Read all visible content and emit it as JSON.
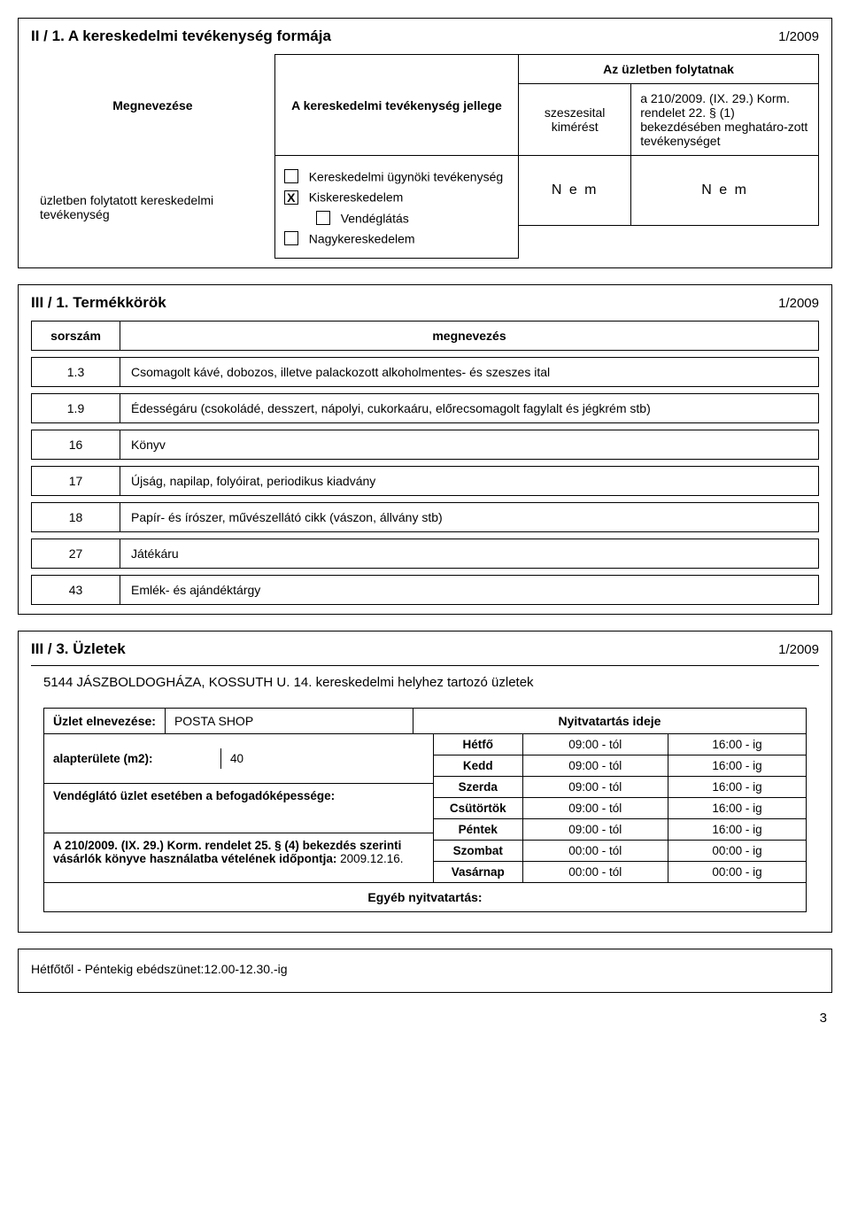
{
  "section1": {
    "title": "II / 1.   A kereskedelmi tevékenység formája",
    "date": "1/2009",
    "megnevezese": "Megnevezése",
    "jellege": "A kereskedelmi tevékenység jellege",
    "uzletben_folytatott": "üzletben folytatott kereskedelmi tevékenység",
    "opt_ugynoki": "Kereskedelmi     ügynöki tevékenység",
    "opt_kisker_checked": true,
    "opt_kisker": "Kiskereskedelem",
    "opt_vendeglatas": "Vendéglátás",
    "opt_nagyker": "Nagykereskedelem",
    "az_uzletben": "Az üzletben folytatnak",
    "szeszesital": "szeszesital kimérést",
    "rendelet": "a 210/2009. (IX. 29.) Korm. rendelet 22. § (1) bekezdésében meghatáro-zott tevékenységet",
    "nem1": "N e m",
    "nem2": "N e m"
  },
  "section2": {
    "title": "III / 1. Termékkörök",
    "date": "1/2009",
    "col_sorszam": "sorszám",
    "col_megnevezes": "megnevezés",
    "rows": [
      {
        "n": "1.3",
        "t": "Csomagolt kávé, dobozos, illetve palackozott alkoholmentes- és szeszes ital"
      },
      {
        "n": "1.9",
        "t": "Édességáru (csokoládé, desszert, nápolyi, cukorkaáru, előrecsomagolt fagylalt és jégkrém stb)"
      },
      {
        "n": "16",
        "t": "Könyv"
      },
      {
        "n": "17",
        "t": "Újság, napilap, folyóirat, periodikus kiadvány"
      },
      {
        "n": "18",
        "t": "Papír- és írószer, művészellátó cikk (vászon, állvány stb)"
      },
      {
        "n": "27",
        "t": "Játékáru"
      },
      {
        "n": "43",
        "t": "Emlék- és ajándéktárgy"
      }
    ]
  },
  "section3": {
    "title": "III / 3. Üzletek",
    "date": "1/2009",
    "address": "5144 JÁSZBOLDOGHÁZA, KOSSUTH U. 14. kereskedelmi helyhez tartozó üzletek",
    "uzlet_label": "Üzlet elnevezése:",
    "uzlet_name": "POSTA SHOP",
    "nyitva_label": "Nyitvatartás ideje",
    "area_label": "alapterülete (m2):",
    "area_val": "40",
    "vendeg_label": "Vendéglátó üzlet esetében a befogadóképessége:",
    "rendelet_text": "A 210/2009. (IX. 29.) Korm. rendelet 25. § (4) bekezdés szerinti vásárlók könyve használatba vételének időpontja:",
    "rendelet_date": "2009.12.16.",
    "days": [
      {
        "d": "Hétfő",
        "f": "09:00 - tól",
        "t": "16:00 - ig"
      },
      {
        "d": "Kedd",
        "f": "09:00 - tól",
        "t": "16:00 - ig"
      },
      {
        "d": "Szerda",
        "f": "09:00 - tól",
        "t": "16:00 - ig"
      },
      {
        "d": "Csütörtök",
        "f": "09:00 - tól",
        "t": "16:00 - ig"
      },
      {
        "d": "Péntek",
        "f": "09:00 - tól",
        "t": "16:00 - ig"
      },
      {
        "d": "Szombat",
        "f": "00:00 - tól",
        "t": "00:00 - ig"
      },
      {
        "d": "Vasárnap",
        "f": "00:00 - tól",
        "t": "00:00 - ig"
      }
    ],
    "egyeb": "Egyéb nyitvatartás:"
  },
  "note": "Hétfőtől  -  Péntekig  ebédszünet:12.00-12.30.-ig",
  "pagenum": "3"
}
